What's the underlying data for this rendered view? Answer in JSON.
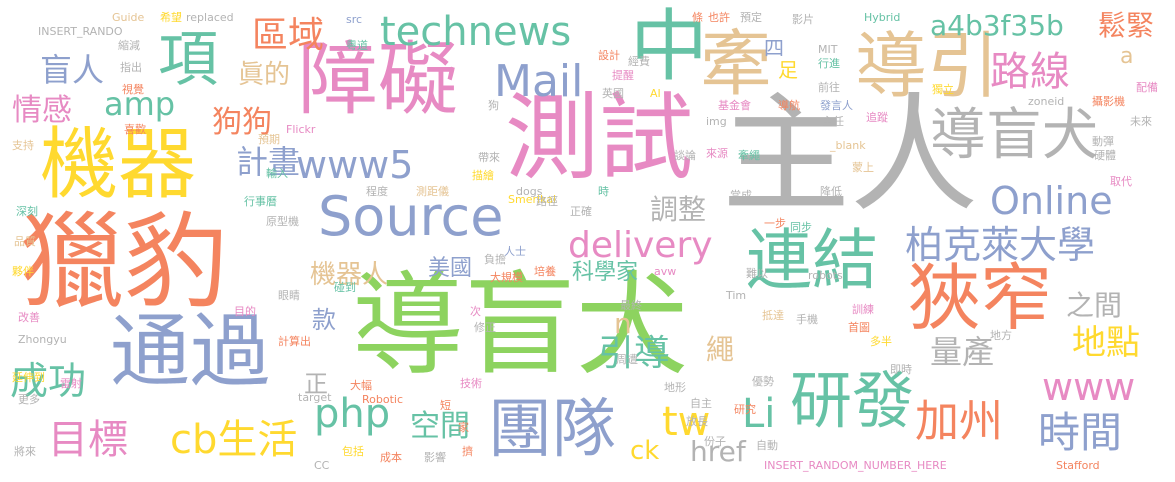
{
  "palette": {
    "green": "#8dd35f",
    "orange": "#f4845f",
    "blue": "#8ea0cd",
    "teal": "#66c2a5",
    "gray": "#b3b3b3",
    "tan": "#e5c494",
    "pink": "#e78ac3",
    "yellow": "#ffd92f"
  },
  "words": [
    {
      "text": "導盲犬",
      "color": "green"
    },
    {
      "text": "主人",
      "color": "gray"
    },
    {
      "text": "獵豹",
      "color": "orange"
    },
    {
      "text": "測試",
      "color": "pink"
    },
    {
      "text": "障礙",
      "color": "pink"
    },
    {
      "text": "機器",
      "color": "yellow"
    },
    {
      "text": "通過",
      "color": "blue"
    },
    {
      "text": "導引",
      "color": "tan"
    },
    {
      "text": "中",
      "color": "teal"
    },
    {
      "text": "牽",
      "color": "tan"
    },
    {
      "text": "狹窄",
      "color": "orange"
    },
    {
      "text": "Source",
      "color": "blue"
    },
    {
      "text": "團隊",
      "color": "blue"
    },
    {
      "text": "研發",
      "color": "teal"
    },
    {
      "text": "連結",
      "color": "teal"
    },
    {
      "text": "項",
      "color": "teal"
    },
    {
      "text": "導盲犬",
      "color": "gray"
    },
    {
      "text": "technews",
      "color": "teal"
    },
    {
      "text": "Mail",
      "color": "blue"
    },
    {
      "text": "delivery",
      "color": "pink"
    },
    {
      "text": "柏克萊大學",
      "color": "blue"
    },
    {
      "text": "Online",
      "color": "blue"
    },
    {
      "text": "www5",
      "color": "blue"
    },
    {
      "text": "路線",
      "color": "pink"
    },
    {
      "text": "加州",
      "color": "orange"
    },
    {
      "text": "時間",
      "color": "blue"
    },
    {
      "text": "www",
      "color": "pink"
    },
    {
      "text": "目標",
      "color": "pink"
    },
    {
      "text": "cb生活",
      "color": "yellow"
    },
    {
      "text": "php",
      "color": "teal"
    },
    {
      "text": "Li",
      "color": "teal"
    },
    {
      "text": "tw",
      "color": "yellow"
    },
    {
      "text": "成功",
      "color": "teal"
    },
    {
      "text": "amp",
      "color": "teal"
    },
    {
      "text": "盲人",
      "color": "blue"
    },
    {
      "text": "情感",
      "color": "pink"
    },
    {
      "text": "區域",
      "color": "orange"
    },
    {
      "text": "a4b3f35b",
      "color": "teal"
    },
    {
      "text": "鬆緊",
      "color": "orange"
    },
    {
      "text": "計畫",
      "color": "blue"
    },
    {
      "text": "狗狗",
      "color": "orange"
    },
    {
      "text": "引導",
      "color": "teal"
    },
    {
      "text": "地點",
      "color": "yellow"
    },
    {
      "text": "量產",
      "color": "gray"
    },
    {
      "text": "之間",
      "color": "gray"
    },
    {
      "text": "空間",
      "color": "teal"
    },
    {
      "text": "href",
      "color": "gray"
    },
    {
      "text": "ck",
      "color": "yellow"
    },
    {
      "text": "調整",
      "color": "gray"
    },
    {
      "text": "科學家",
      "color": "teal"
    },
    {
      "text": "機器人",
      "color": "tan"
    },
    {
      "text": "美國",
      "color": "blue"
    },
    {
      "text": "眞的",
      "color": "tan"
    },
    {
      "text": "款",
      "color": "blue"
    },
    {
      "text": "繩",
      "color": "tan"
    },
    {
      "text": "n",
      "color": "tan"
    },
    {
      "text": "正",
      "color": "gray"
    },
    {
      "text": "四",
      "color": "blue"
    },
    {
      "text": "足",
      "color": "yellow"
    },
    {
      "text": "a",
      "color": "tan"
    },
    {
      "text": "Guide",
      "color": "tan"
    },
    {
      "text": "希望",
      "color": "yellow"
    },
    {
      "text": "replaced",
      "color": "gray"
    },
    {
      "text": "src",
      "color": "blue"
    },
    {
      "text": "也許",
      "color": "orange"
    },
    {
      "text": "預定",
      "color": "gray"
    },
    {
      "text": "條",
      "color": "orange"
    },
    {
      "text": "INSERT_RANDO",
      "color": "gray"
    },
    {
      "text": "縮減",
      "color": "gray"
    },
    {
      "text": "粵道",
      "color": "teal"
    },
    {
      "text": "設計",
      "color": "orange"
    },
    {
      "text": "經費",
      "color": "gray"
    },
    {
      "text": "影片",
      "color": "gray"
    },
    {
      "text": "MIT",
      "color": "gray"
    },
    {
      "text": "Hybrid",
      "color": "teal"
    },
    {
      "text": "指出",
      "color": "gray"
    },
    {
      "text": "視覺",
      "color": "orange"
    },
    {
      "text": "提醒",
      "color": "pink"
    },
    {
      "text": "行進",
      "color": "teal"
    },
    {
      "text": "前往",
      "color": "gray"
    },
    {
      "text": "獨立",
      "color": "yellow"
    },
    {
      "text": "配備",
      "color": "pink"
    },
    {
      "text": "英國",
      "color": "gray"
    },
    {
      "text": "AI",
      "color": "yellow"
    },
    {
      "text": "zoneid",
      "color": "gray"
    },
    {
      "text": "攝影機",
      "color": "orange"
    },
    {
      "text": "狗",
      "color": "gray"
    },
    {
      "text": "基金會",
      "color": "pink"
    },
    {
      "text": "導航",
      "color": "orange"
    },
    {
      "text": "發言人",
      "color": "blue"
    },
    {
      "text": "未來",
      "color": "gray"
    },
    {
      "text": "喜歡",
      "color": "orange"
    },
    {
      "text": "img",
      "color": "gray"
    },
    {
      "text": "主任",
      "color": "gray"
    },
    {
      "text": "追蹤",
      "color": "pink"
    },
    {
      "text": "預期",
      "color": "tan"
    },
    {
      "text": "Flickr",
      "color": "pink"
    },
    {
      "text": "動彈",
      "color": "gray"
    },
    {
      "text": "支持",
      "color": "tan"
    },
    {
      "text": "帶來",
      "color": "gray"
    },
    {
      "text": "談論",
      "color": "gray"
    },
    {
      "text": "來源",
      "color": "pink"
    },
    {
      "text": "牽繩",
      "color": "teal"
    },
    {
      "text": "_blank",
      "color": "tan"
    },
    {
      "text": "硬體",
      "color": "gray"
    },
    {
      "text": "描繪",
      "color": "yellow"
    },
    {
      "text": "蒙上",
      "color": "tan"
    },
    {
      "text": "取代",
      "color": "pink"
    },
    {
      "text": "輸入",
      "color": "teal"
    },
    {
      "text": "dogs",
      "color": "gray"
    },
    {
      "text": "降低",
      "color": "gray"
    },
    {
      "text": "深刻",
      "color": "teal"
    },
    {
      "text": "行事曆",
      "color": "teal"
    },
    {
      "text": "程度",
      "color": "gray"
    },
    {
      "text": "測距儀",
      "color": "tan"
    },
    {
      "text": "Smerikal",
      "color": "yellow"
    },
    {
      "text": "時",
      "color": "teal"
    },
    {
      "text": "當成",
      "color": "gray"
    },
    {
      "text": "原型機",
      "color": "gray"
    },
    {
      "text": "路徑",
      "color": "gray"
    },
    {
      "text": "正確",
      "color": "gray"
    },
    {
      "text": "一步",
      "color": "orange"
    },
    {
      "text": "同步",
      "color": "teal"
    },
    {
      "text": "品質",
      "color": "tan"
    },
    {
      "text": "人士",
      "color": "blue"
    },
    {
      "text": "夥伴",
      "color": "yellow"
    },
    {
      "text": "負擔",
      "color": "gray"
    },
    {
      "text": "培養",
      "color": "orange"
    },
    {
      "text": "難以",
      "color": "gray"
    },
    {
      "text": "大規模",
      "color": "orange"
    },
    {
      "text": "avw",
      "color": "pink"
    },
    {
      "text": "robots",
      "color": "gray"
    },
    {
      "text": "碰到",
      "color": "teal"
    },
    {
      "text": "眼睛",
      "color": "gray"
    },
    {
      "text": "Tim",
      "color": "gray"
    },
    {
      "text": "改善",
      "color": "pink"
    },
    {
      "text": "最終",
      "color": "gray"
    },
    {
      "text": "訓練",
      "color": "pink"
    },
    {
      "text": "目的",
      "color": "pink"
    },
    {
      "text": "次",
      "color": "pink"
    },
    {
      "text": "手機",
      "color": "gray"
    },
    {
      "text": "抵達",
      "color": "tan"
    },
    {
      "text": "首圖",
      "color": "orange"
    },
    {
      "text": "Zhongyu",
      "color": "gray"
    },
    {
      "text": "計算出",
      "color": "orange"
    },
    {
      "text": "修正",
      "color": "gray"
    },
    {
      "text": "多半",
      "color": "yellow"
    },
    {
      "text": "地方",
      "color": "gray"
    },
    {
      "text": "周遭",
      "color": "gray"
    },
    {
      "text": "延伸到",
      "color": "yellow"
    },
    {
      "text": "即時",
      "color": "gray"
    },
    {
      "text": "大幅",
      "color": "orange"
    },
    {
      "text": "技術",
      "color": "pink"
    },
    {
      "text": "地形",
      "color": "gray"
    },
    {
      "text": "優勢",
      "color": "gray"
    },
    {
      "text": "雷射",
      "color": "pink"
    },
    {
      "text": "更多",
      "color": "gray"
    },
    {
      "text": "target",
      "color": "gray"
    },
    {
      "text": "Robotic",
      "color": "orange"
    },
    {
      "text": "短",
      "color": "orange"
    },
    {
      "text": "自主",
      "color": "gray"
    },
    {
      "text": "研究",
      "color": "orange"
    },
    {
      "text": "放長",
      "color": "gray"
    },
    {
      "text": "份子",
      "color": "gray"
    },
    {
      "text": "將來",
      "color": "gray"
    },
    {
      "text": "包括",
      "color": "yellow"
    },
    {
      "text": "成本",
      "color": "orange"
    },
    {
      "text": "影響",
      "color": "gray"
    },
    {
      "text": "擠",
      "color": "orange"
    },
    {
      "text": "家",
      "color": "orange"
    },
    {
      "text": "自動",
      "color": "gray"
    },
    {
      "text": "CC",
      "color": "gray"
    },
    {
      "text": "INSERT_RANDOM_NUMBER_HERE",
      "color": "pink"
    },
    {
      "text": "Stafford",
      "color": "orange"
    }
  ]
}
